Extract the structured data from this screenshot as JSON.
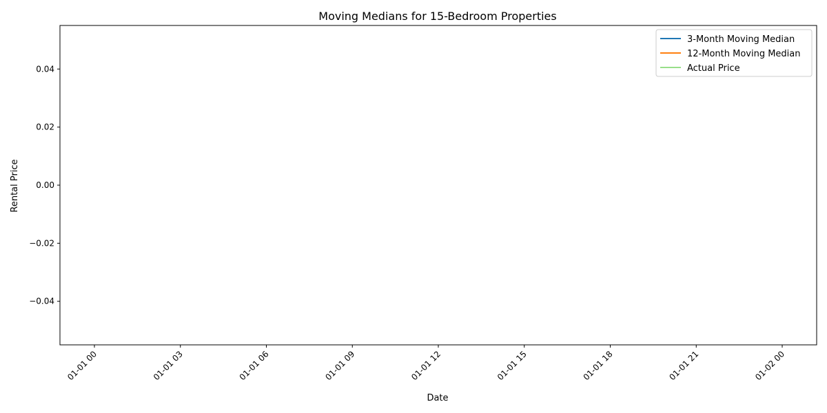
{
  "chart_data": {
    "type": "line",
    "title": "Moving Medians for 15-Bedroom Properties",
    "xlabel": "Date",
    "ylabel": "Rental Price",
    "x_tick_labels": [
      "01-01 00",
      "01-01 03",
      "01-01 06",
      "01-01 09",
      "01-01 12",
      "01-01 15",
      "01-01 18",
      "01-01 21",
      "01-02 00"
    ],
    "y_tick_labels": [
      "0.04",
      "0.02",
      "0.00",
      "−0.02",
      "−0.04"
    ],
    "y_tick_values": [
      0.04,
      0.02,
      0.0,
      -0.02,
      -0.04
    ],
    "ylim": [
      -0.055,
      0.055
    ],
    "grid": false,
    "legend_position": "top-right",
    "series": [
      {
        "name": "3-Month Moving Median",
        "color": "#1f77b4",
        "x": [],
        "values": []
      },
      {
        "name": "12-Month Moving Median",
        "color": "#ff7f0e",
        "x": [],
        "values": []
      },
      {
        "name": "Actual Price",
        "color": "#98df8a",
        "x": [],
        "values": []
      }
    ]
  }
}
